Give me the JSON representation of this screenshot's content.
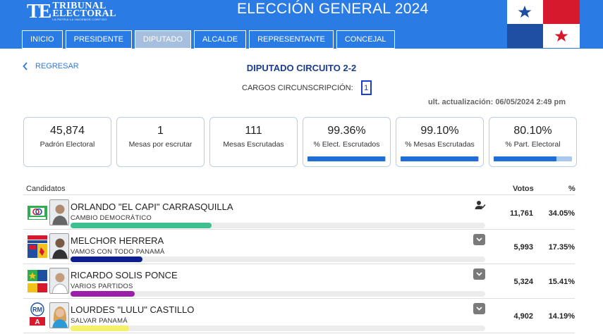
{
  "header": {
    "logo_mark": "TE",
    "logo_line1": "TRIBUNAL",
    "logo_line2": "ELECTORAL",
    "logo_tagline": "LA PATRIA LA HACEMOS CONTIGO",
    "title": "ELECCIÓN GENERAL 2024",
    "flag_colors": {
      "red": "#d6192c",
      "blue": "#1e4fa0",
      "white": "#ffffff"
    }
  },
  "nav": {
    "tabs": [
      {
        "label": "INICIO"
      },
      {
        "label": "PRESIDENTE"
      },
      {
        "label": "DIPUTADO",
        "active": true
      },
      {
        "label": "ALCALDE"
      },
      {
        "label": "REPRESENTANTE"
      },
      {
        "label": "CONCEJAL"
      }
    ]
  },
  "page": {
    "back_label": "REGRESAR",
    "title": "DIPUTADO CIRCUITO 2-2",
    "cargos_label": "CARGOS CIRCUNSCRIPCIÓN:",
    "cargos_value": "1",
    "updated": "ult. actualización: 06/05/2024 2:49 pm"
  },
  "stats": [
    {
      "value": "45,874",
      "label": "Padrón Electoral"
    },
    {
      "value": "1",
      "label": "Mesas por escrutar"
    },
    {
      "value": "111",
      "label": "Mesas Escrutadas"
    },
    {
      "value": "99.36%",
      "label": "% Elect. Escrutados",
      "progress": 99.36
    },
    {
      "value": "99.10%",
      "label": "% Mesas Escrutadas",
      "progress": 99.1
    },
    {
      "value": "80.10%",
      "label": "% Part. Electoral",
      "progress": 80.1
    }
  ],
  "table": {
    "col_candidates": "Candidatos",
    "col_votes": "Votos",
    "col_pct": "%"
  },
  "candidates": [
    {
      "name": "ORLANDO \"EL CAPI\" CARRASQUILLA",
      "party": "CAMBIO DEMOCRÁTICO",
      "votes": "11,761",
      "pct": "34.05%",
      "share": 34.05,
      "color": "#3dbf8f",
      "elected": true,
      "party_logo_icon": "cambio-democratico-logo"
    },
    {
      "name": "MELCHOR HERRERA",
      "party": "VAMOS CON TODO PANAMÁ",
      "votes": "5,993",
      "pct": "17.35%",
      "share": 17.35,
      "color": "#0d1f8f",
      "elected": false,
      "party_logo_icon": "multi-party-logo"
    },
    {
      "name": "RICARDO SOLIS PONCE",
      "party": "VARIOS PARTIDOS",
      "votes": "5,324",
      "pct": "15.41%",
      "share": 15.41,
      "color": "#9b1fa8",
      "elected": false,
      "party_logo_icon": "multi-party-logo"
    },
    {
      "name": "LOURDES \"LULU\" CASTILLO",
      "party": "SALVAR PANAMÁ",
      "votes": "4,902",
      "pct": "14.19%",
      "share": 14.19,
      "color": "#f4f06a",
      "elected": false,
      "party_logo_icon": "rm-party-logo"
    }
  ]
}
